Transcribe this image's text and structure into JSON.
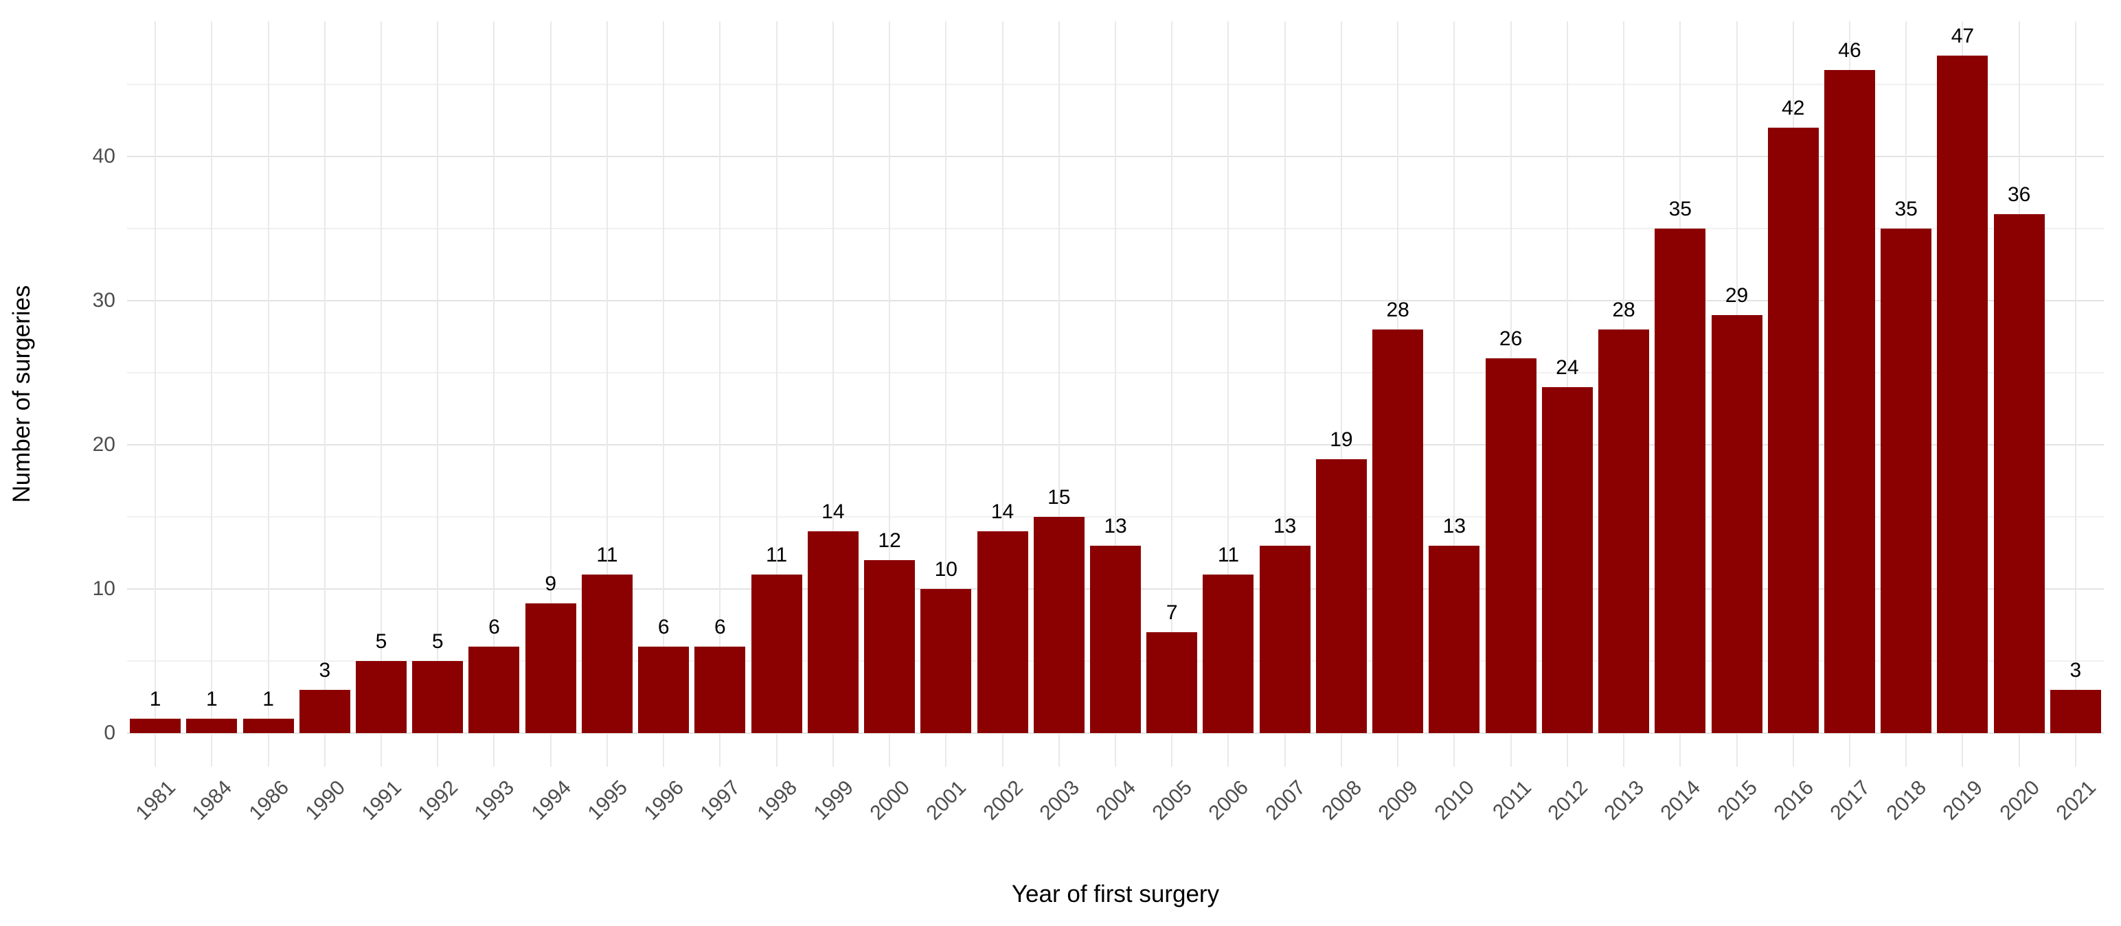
{
  "chart_data": {
    "type": "bar",
    "title": "",
    "xlabel": "Year of first surgery",
    "ylabel": "Number of surgeries",
    "categories": [
      "1981",
      "1984",
      "1986",
      "1990",
      "1991",
      "1992",
      "1993",
      "1994",
      "1995",
      "1996",
      "1997",
      "1998",
      "1999",
      "2000",
      "2001",
      "2002",
      "2003",
      "2004",
      "2005",
      "2006",
      "2007",
      "2008",
      "2009",
      "2010",
      "2011",
      "2012",
      "2013",
      "2014",
      "2015",
      "2016",
      "2017",
      "2018",
      "2019",
      "2020",
      "2021"
    ],
    "values": [
      1,
      1,
      1,
      3,
      5,
      5,
      6,
      9,
      11,
      6,
      6,
      11,
      14,
      12,
      10,
      14,
      15,
      13,
      7,
      11,
      13,
      19,
      28,
      13,
      26,
      24,
      28,
      35,
      29,
      42,
      46,
      35,
      47,
      36,
      3
    ],
    "bar_value_labels": [
      "1",
      "1",
      "1",
      "3",
      "5",
      "5",
      "6",
      "9",
      "11",
      "6",
      "6",
      "11",
      "14",
      "12",
      "10",
      "14",
      "15",
      "13",
      "7",
      "11",
      "13",
      "19",
      "28",
      "13",
      "26",
      "24",
      "28",
      "35",
      "29",
      "42",
      "46",
      "35",
      "47",
      "36",
      "3"
    ],
    "ylim": [
      0,
      50
    ],
    "yticks_major": [
      0,
      10,
      20,
      30,
      40
    ],
    "ytick_labels": [
      "0",
      "10",
      "20",
      "30",
      "40"
    ],
    "yticks_minor": [
      5,
      15,
      25,
      35,
      45
    ],
    "grid": "on",
    "legend": "none",
    "bar_color": "#8B0000",
    "axis_text_color": "#4d4d4d",
    "label_text_color": "#000000",
    "grid_major_color": "#e3e3e3",
    "grid_minor_color": "#f1f1f1",
    "background_color": "#ffffff"
  }
}
